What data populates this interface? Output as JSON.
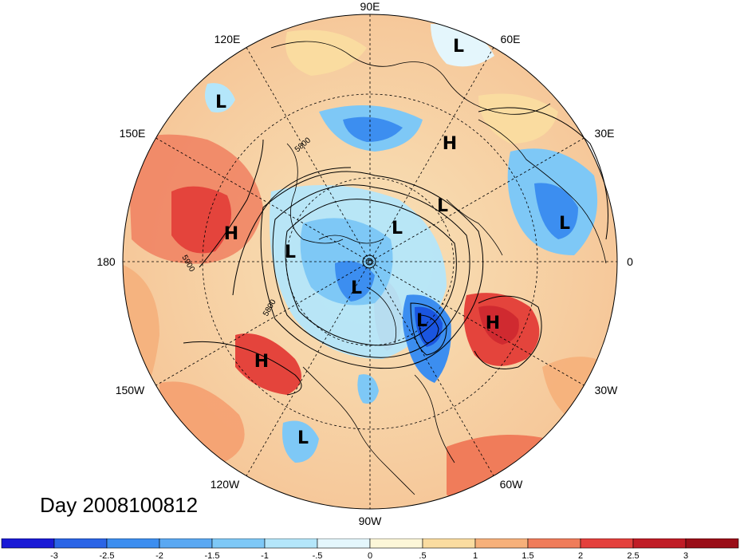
{
  "title": "Day 2008100812",
  "longitude_labels": [
    {
      "text": "90E",
      "lon": "90E"
    },
    {
      "text": "60E",
      "lon": "60E"
    },
    {
      "text": "120E",
      "lon": "120E"
    },
    {
      "text": "30E",
      "lon": "30E"
    },
    {
      "text": "150E",
      "lon": "150E"
    },
    {
      "text": "0",
      "lon": "0"
    },
    {
      "text": "180",
      "lon": "180"
    },
    {
      "text": "30W",
      "lon": "30W"
    },
    {
      "text": "150W",
      "lon": "150W"
    },
    {
      "text": "60W",
      "lon": "60W"
    },
    {
      "text": "120W",
      "lon": "120W"
    },
    {
      "text": "90W",
      "lon": "90W"
    }
  ],
  "pressure_centers": [
    {
      "type": "L",
      "region": "60E"
    },
    {
      "type": "L",
      "region": "120E"
    },
    {
      "type": "H",
      "region": "30E-60E"
    },
    {
      "type": "L",
      "region": "Eurasia"
    },
    {
      "type": "L",
      "region": "Europe"
    },
    {
      "type": "L",
      "region": "Arctic"
    },
    {
      "type": "H",
      "region": "North Pacific"
    },
    {
      "type": "L",
      "region": "Bering"
    },
    {
      "type": "L",
      "region": "Canadian Arctic"
    },
    {
      "type": "L",
      "region": "Labrador"
    },
    {
      "type": "H",
      "region": "North Atlantic"
    },
    {
      "type": "H",
      "region": "NE Pacific"
    },
    {
      "type": "L",
      "region": "Eastern Pacific"
    }
  ],
  "contour_labels": [
    "5800",
    "5900",
    "5800"
  ],
  "colorbar": {
    "ticks": [
      "-3",
      "-2.5",
      "-2",
      "-1.5",
      "-1",
      "-.5",
      "0",
      ".5",
      "1",
      "1.5",
      "2",
      "2.5",
      "3"
    ],
    "colors": [
      "#1a1ad6",
      "#2a64e6",
      "#3c8ef0",
      "#5aa8f2",
      "#7ec8f6",
      "#b4e6fa",
      "#e4f6fc",
      "#fcf6d8",
      "#fadca0",
      "#f6b07a",
      "#f07c5a",
      "#e4403c",
      "#c01c26",
      "#9a0e18"
    ]
  }
}
